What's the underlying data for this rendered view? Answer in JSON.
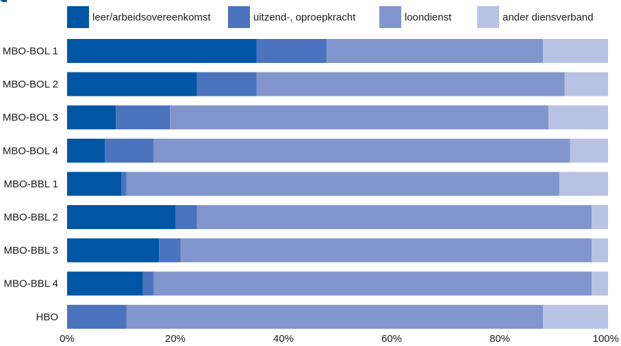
{
  "chart_data": {
    "type": "bar",
    "orientation": "horizontal",
    "stacked": true,
    "normalized": true,
    "title": "",
    "xlabel": "",
    "ylabel": "",
    "xlim": [
      0,
      100
    ],
    "x_ticks": [
      0,
      20,
      40,
      60,
      80,
      100
    ],
    "x_tick_labels": [
      "0%",
      "20%",
      "40%",
      "60%",
      "80%",
      "100%"
    ],
    "grid": false,
    "legend_position": "top",
    "categories": [
      "MBO-BOL 1",
      "MBO-BOL 2",
      "MBO-BOL 3",
      "MBO-BOL 4",
      "MBO-BBL 1",
      "MBO-BBL 2",
      "MBO-BBL 3",
      "MBO-BBL 4",
      "HBO"
    ],
    "series": [
      {
        "name": "leer/arbeidsovereenkomst",
        "color": "#0055a5",
        "values": [
          35,
          24,
          9,
          7,
          10,
          20,
          17,
          14,
          0
        ]
      },
      {
        "name": "uitzend-, oproepkracht",
        "color": "#4b73be",
        "values": [
          13,
          11,
          10,
          9,
          1,
          4,
          4,
          2,
          11
        ]
      },
      {
        "name": "loondienst",
        "color": "#8295cc",
        "values": [
          40,
          57,
          70,
          77,
          80,
          73,
          76,
          81,
          77
        ]
      },
      {
        "name": "ander diensverband",
        "color": "#b8c2e2",
        "values": [
          12,
          8,
          11,
          7,
          9,
          3,
          3,
          3,
          12
        ]
      }
    ]
  }
}
